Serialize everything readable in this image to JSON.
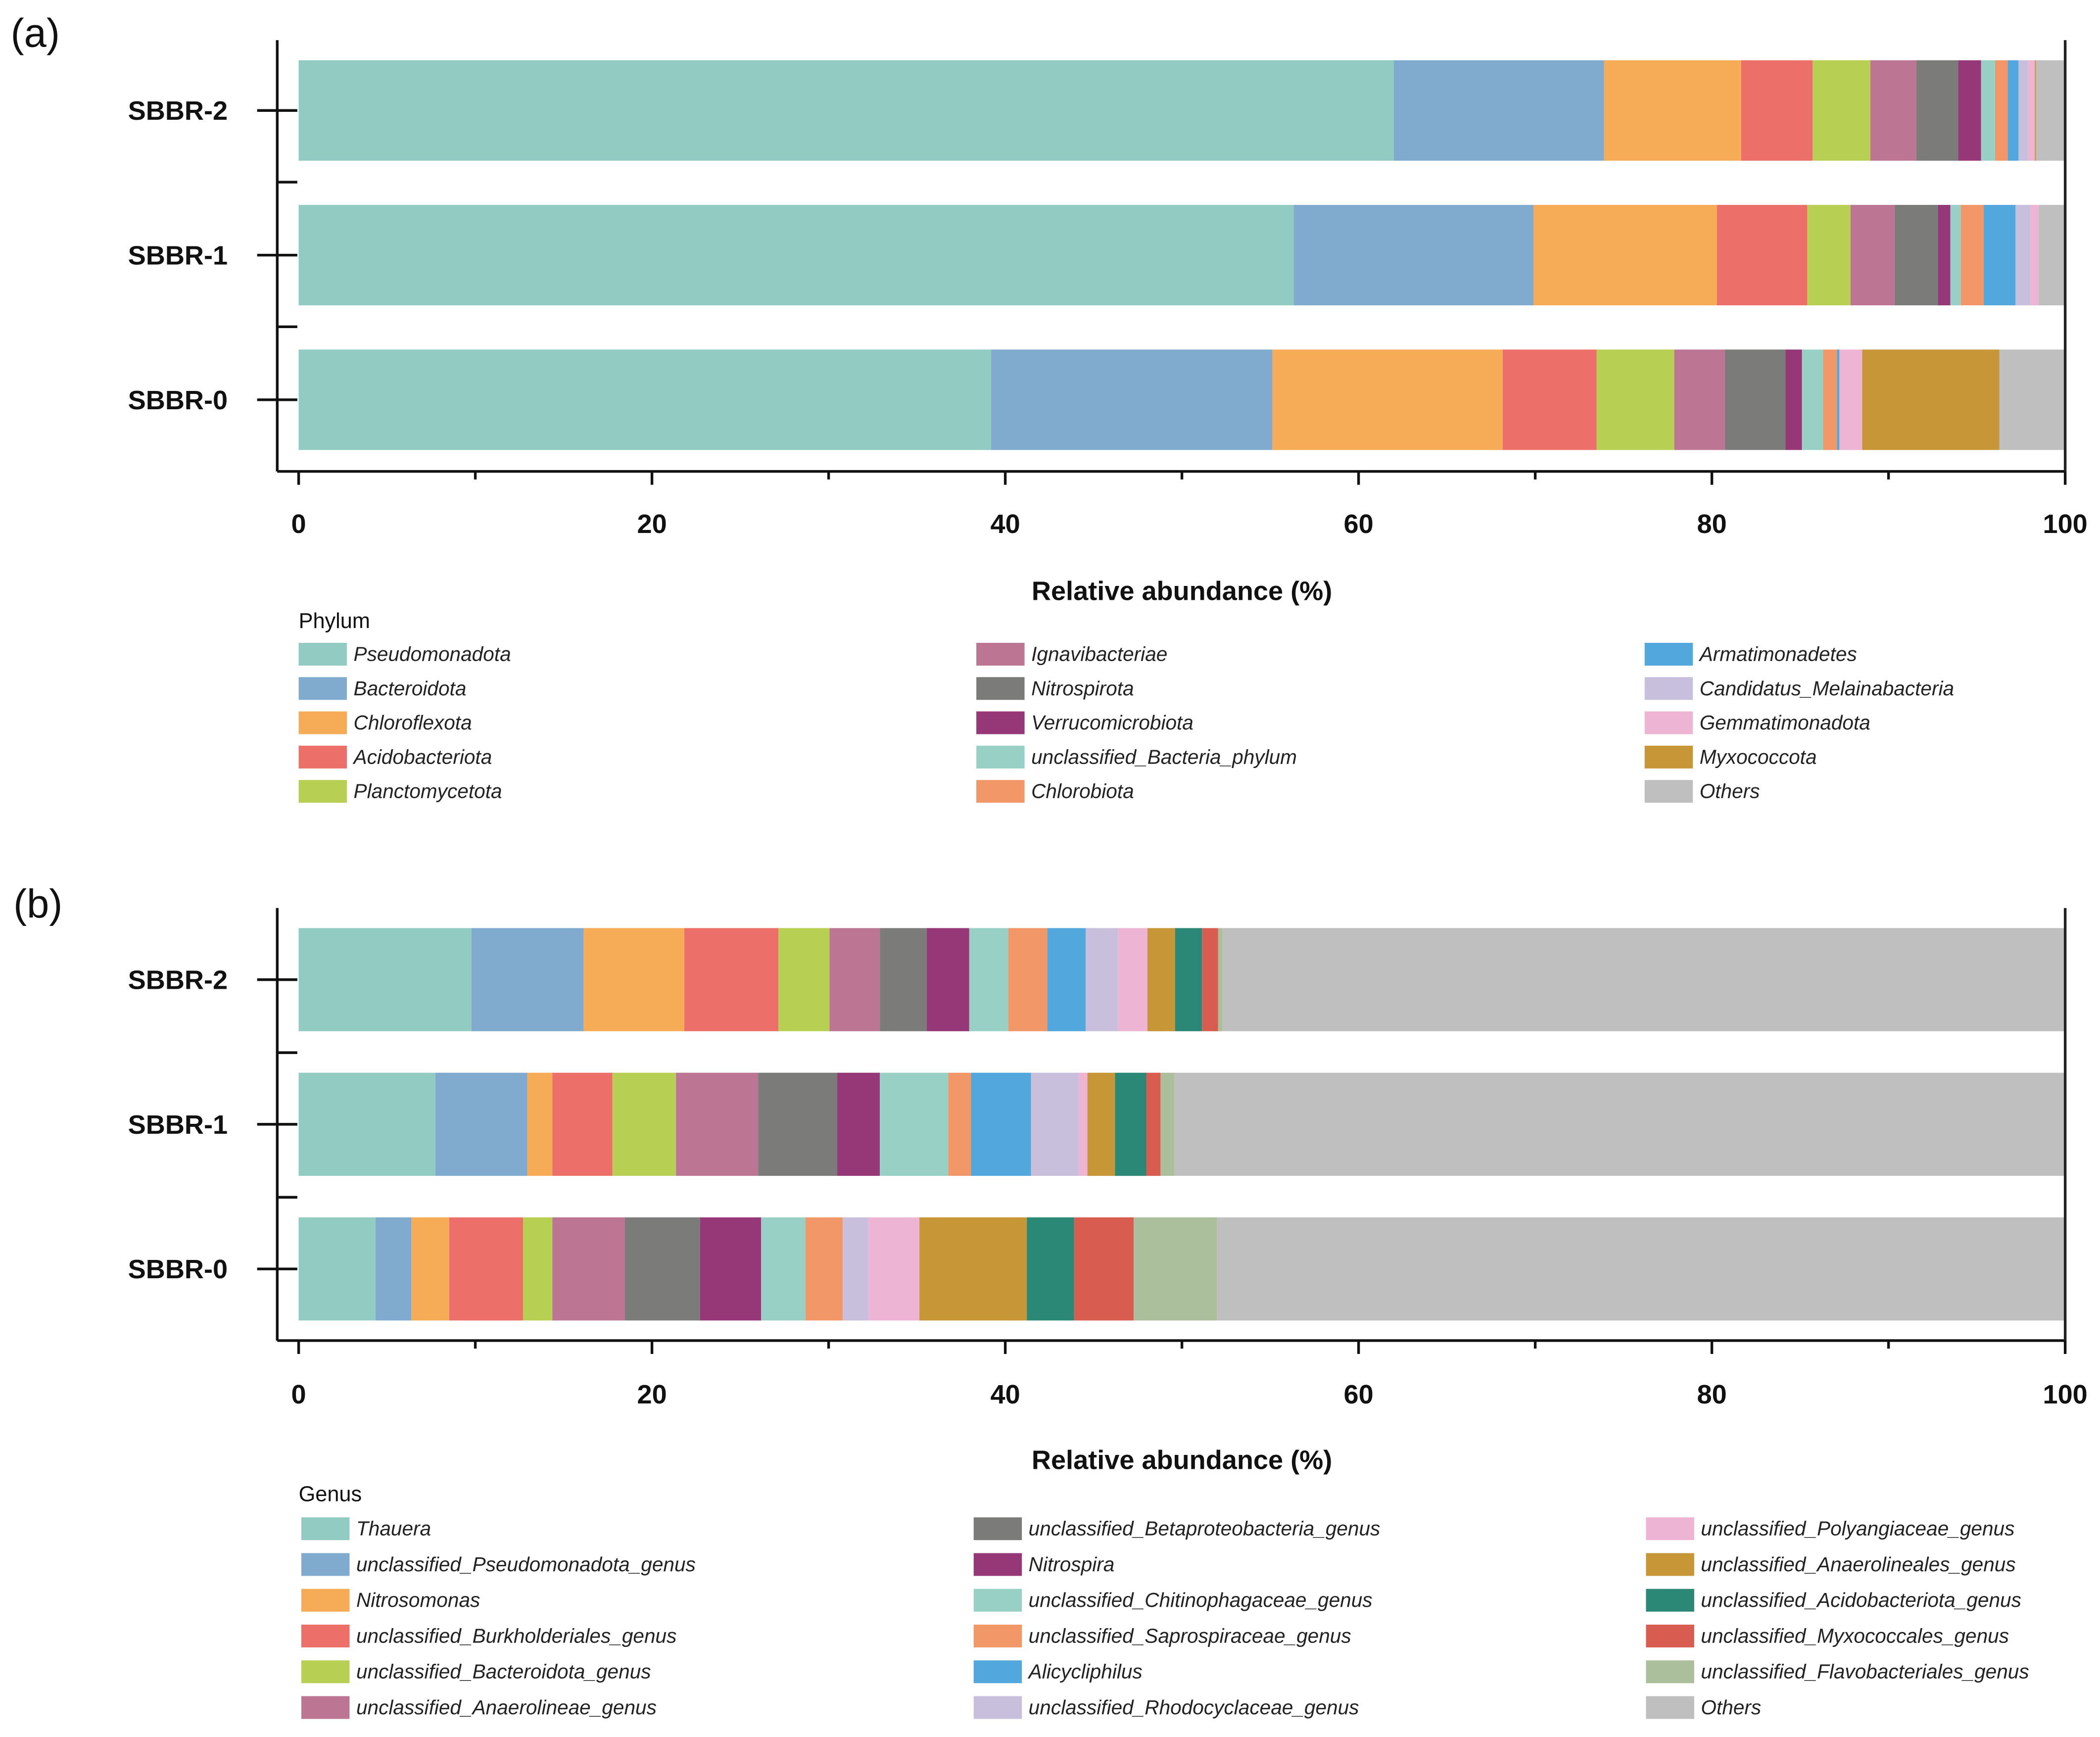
{
  "chart_data": [
    {
      "type": "bar",
      "orientation": "horizontal-stacked",
      "panel_label": "(a)",
      "xlabel": "Relative abundance (%)",
      "xlim": [
        0,
        100
      ],
      "xticks": [
        "0",
        "20",
        "40",
        "60",
        "80",
        "100"
      ],
      "legend_title": "Phylum",
      "categories": [
        "SBBR-2",
        "SBBR-1",
        "SBBR-0"
      ],
      "series": [
        {
          "name": "Pseudomonadota",
          "color": "#92cbc1",
          "values": [
            62.0,
            56.33,
            39.2
          ]
        },
        {
          "name": "Bacteroidota",
          "color": "#80abcf",
          "values": [
            11.9,
            13.57,
            15.92
          ]
        },
        {
          "name": "Chloroflexota",
          "color": "#f6ab56",
          "values": [
            7.76,
            10.39,
            13.04
          ]
        },
        {
          "name": "Acidobacteriota",
          "color": "#ec6f69",
          "values": [
            4.04,
            5.11,
            5.31
          ]
        },
        {
          "name": "Planctomycetota",
          "color": "#b7cf53",
          "values": [
            3.27,
            2.45,
            4.4
          ]
        },
        {
          "name": "Ignavibacteriae",
          "color": "#bc7693",
          "values": [
            2.6,
            2.49,
            2.87
          ]
        },
        {
          "name": "Nitrospirota",
          "color": "#7b7b79",
          "values": [
            2.37,
            2.46,
            3.43
          ]
        },
        {
          "name": "Verrucomicrobiota",
          "color": "#963877",
          "values": [
            1.3,
            0.7,
            0.93
          ]
        },
        {
          "name": "unclassified_Bacteria_phylum",
          "color": "#98d0c6",
          "values": [
            0.79,
            0.59,
            1.2
          ]
        },
        {
          "name": "Chlorobiota",
          "color": "#f19768",
          "values": [
            0.72,
            1.3,
            0.78
          ]
        },
        {
          "name": "Armatimonadetes",
          "color": "#52a8dc",
          "values": [
            0.61,
            1.8,
            0.14
          ]
        },
        {
          "name": "Candidatus_Melainabacteria",
          "color": "#c7bfdc",
          "values": [
            0.54,
            0.85,
            0.0
          ]
        },
        {
          "name": "Gemmatimonadota",
          "color": "#edb4d4",
          "values": [
            0.38,
            0.46,
            1.29
          ]
        },
        {
          "name": "Myxococcota",
          "color": "#c79737",
          "values": [
            0.07,
            0.0,
            7.77
          ]
        },
        {
          "name": "Others",
          "color": "#bfbfbf",
          "values": [
            1.65,
            1.5,
            3.72
          ]
        }
      ]
    },
    {
      "type": "bar",
      "orientation": "horizontal-stacked",
      "panel_label": "(b)",
      "xlabel": "Relative abundance (%)",
      "xlim": [
        0,
        100
      ],
      "xticks": [
        "0",
        "20",
        "40",
        "60",
        "80",
        "100"
      ],
      "legend_title": "Genus",
      "categories": [
        "SBBR-2",
        "SBBR-1",
        "SBBR-0"
      ],
      "series": [
        {
          "name": "Thauera",
          "color": "#92cbc1",
          "values": [
            9.78,
            7.74,
            4.35
          ]
        },
        {
          "name": "unclassified_Pseudomonadota_genus",
          "color": "#80abcf",
          "values": [
            6.35,
            5.2,
            2.03
          ]
        },
        {
          "name": "Nitrosomonas",
          "color": "#f6ab56",
          "values": [
            5.7,
            1.42,
            2.14
          ]
        },
        {
          "name": "unclassified_Burkholderiales_genus",
          "color": "#ec6f69",
          "values": [
            5.33,
            3.4,
            4.18
          ]
        },
        {
          "name": "unclassified_Bacteroidota_genus",
          "color": "#b7cf53",
          "values": [
            2.89,
            3.6,
            1.66
          ]
        },
        {
          "name": "unclassified_Anaerolineae_genus",
          "color": "#bc7693",
          "values": [
            2.85,
            4.65,
            4.11
          ]
        },
        {
          "name": "unclassified_Betaproteobacteria_genus",
          "color": "#7b7b79",
          "values": [
            2.65,
            4.48,
            4.25
          ]
        },
        {
          "name": "Nitrospira",
          "color": "#963877",
          "values": [
            2.41,
            2.41,
            3.46
          ]
        },
        {
          "name": "unclassified_Chitinophagaceae_genus",
          "color": "#98d0c6",
          "values": [
            2.21,
            3.87,
            2.51
          ]
        },
        {
          "name": "unclassified_Saprospiraceae_genus",
          "color": "#f19768",
          "values": [
            2.21,
            1.29,
            2.11
          ]
        },
        {
          "name": "Alicycliphilus",
          "color": "#52a8dc",
          "values": [
            2.17,
            3.4,
            0.0
          ]
        },
        {
          "name": "unclassified_Rhodocyclaceae_genus",
          "color": "#c7bfdc",
          "values": [
            1.83,
            2.68,
            1.46
          ]
        },
        {
          "name": "unclassified_Polyangiaceae_genus",
          "color": "#edb4d4",
          "values": [
            1.67,
            0.51,
            2.88
          ]
        },
        {
          "name": "unclassified_Anaerolineales_genus",
          "color": "#c79737",
          "values": [
            1.56,
            1.56,
            6.08
          ]
        },
        {
          "name": "unclassified_Acidobacteriota_genus",
          "color": "#2b8876",
          "values": [
            1.53,
            1.77,
            2.68
          ]
        },
        {
          "name": "unclassified_Myxococcales_genus",
          "color": "#d95c50",
          "values": [
            0.91,
            0.81,
            3.37
          ]
        },
        {
          "name": "unclassified_Flavobacteriales_genus",
          "color": "#acbf9c",
          "values": [
            0.25,
            0.79,
            4.72
          ]
        },
        {
          "name": "Others",
          "color": "#bfbfbf",
          "values": [
            47.7,
            50.42,
            48.01
          ]
        }
      ]
    }
  ]
}
